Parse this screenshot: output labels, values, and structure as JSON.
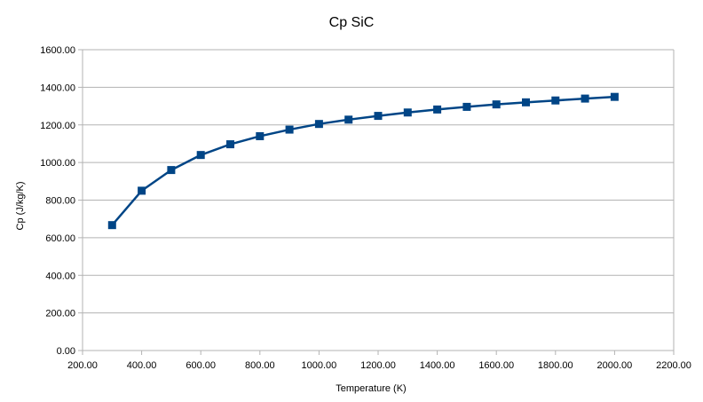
{
  "chart_data": {
    "type": "line",
    "title": "Cp SiC",
    "xlabel": "Temperature (K)",
    "ylabel": "Cp (J/kg/K)",
    "xlim": [
      200,
      2200
    ],
    "ylim": [
      0,
      1600
    ],
    "x_ticks": [
      "200.00",
      "400.00",
      "600.00",
      "800.00",
      "1000.00",
      "1200.00",
      "1400.00",
      "1600.00",
      "1800.00",
      "2000.00",
      "2200.00"
    ],
    "y_ticks": [
      "0.00",
      "200.00",
      "400.00",
      "600.00",
      "800.00",
      "1000.00",
      "1200.00",
      "1400.00",
      "1600.00"
    ],
    "grid": true,
    "legend": "none",
    "series": [
      {
        "color": "#004586",
        "marker": "square",
        "x": [
          300,
          400,
          500,
          600,
          700,
          800,
          900,
          1000,
          1100,
          1200,
          1300,
          1400,
          1500,
          1600,
          1700,
          1800,
          1900,
          2000
        ],
        "y": [
          667,
          850,
          960,
          1040,
          1097,
          1140,
          1175,
          1205,
          1228,
          1248,
          1266,
          1282,
          1296,
          1309,
          1320,
          1330,
          1340,
          1349
        ]
      }
    ]
  }
}
